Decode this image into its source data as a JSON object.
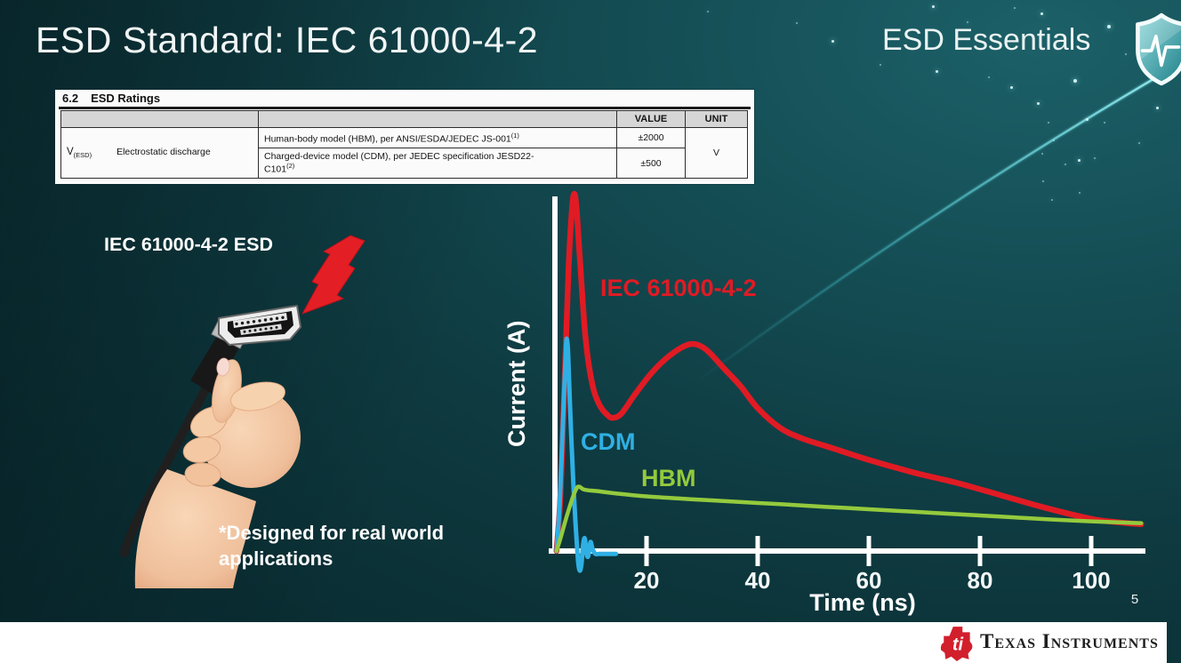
{
  "slide": {
    "title": "ESD Standard: IEC 61000-4-2",
    "program": "ESD Essentials",
    "page_number": "5",
    "brand": "Texas Instruments"
  },
  "ratings_table": {
    "section": "6.2",
    "section_title": "ESD Ratings",
    "value_header": "VALUE",
    "unit_header": "UNIT",
    "symbol": "V",
    "symbol_sub": "(ESD)",
    "row_label": "Electrostatic discharge",
    "rows": [
      {
        "desc": "Human-body model (HBM), per ANSI/ESDA/JEDEC JS-001",
        "sup": "(1)",
        "value": "±2000"
      },
      {
        "desc": "Charged-device model (CDM), per JEDEC specification JESD22-",
        "desc2": "C101",
        "sup": "(2)",
        "value": "±500"
      }
    ],
    "unit": "V"
  },
  "illustration": {
    "label": "IEC 61000-4-2 ESD",
    "note_line1": "*Designed for real world",
    "note_line2": "applications"
  },
  "chart_data": {
    "type": "line",
    "title": "",
    "xlabel": "Time (ns)",
    "ylabel": "Current (A)",
    "x_ticks": [
      20,
      40,
      60,
      80,
      100
    ],
    "xlim": [
      0,
      112
    ],
    "ylim": [
      -8,
      105
    ],
    "grid": false,
    "legend": "inline-labels",
    "y_unit": "relative amplitude (% of IEC 61000-4-2 peak)",
    "series": [
      {
        "name": "IEC 61000-4-2",
        "color": "#e01b24",
        "x": [
          3.8,
          4.5,
          5.2,
          6,
          6.6,
          7,
          7.4,
          8,
          9,
          10.2,
          11.5,
          13,
          14,
          15.5,
          18,
          21,
          24,
          27,
          29,
          31,
          34,
          37,
          40,
          44,
          48,
          53,
          60,
          68,
          76,
          84,
          92,
          100,
          105,
          109
        ],
        "y": [
          0,
          15,
          45,
          80,
          96,
          100,
          96,
          82,
          60,
          47,
          41,
          38,
          37.3,
          38.5,
          44,
          50,
          54.5,
          57.5,
          57.8,
          56,
          51,
          46,
          40,
          34.5,
          31.5,
          29,
          25.5,
          22,
          19,
          15.5,
          12,
          9,
          8,
          7.5
        ]
      },
      {
        "name": "CDM",
        "color": "#2fb0e4",
        "x": [
          3.8,
          4.4,
          5,
          5.5,
          5.7,
          5.9,
          6.3,
          6.8,
          7.3,
          7.7,
          8,
          8.3,
          8.6,
          8.9,
          9.2,
          9.5,
          9.9,
          10.3,
          10.8,
          11.5,
          13,
          14.5
        ],
        "y": [
          0,
          14,
          38,
          57,
          59,
          55,
          38,
          20,
          6,
          -3,
          -5.5,
          -3.5,
          2,
          3.5,
          -0.5,
          -1.5,
          2.5,
          0.5,
          -0.8,
          -0.8,
          -0.8,
          -0.8
        ]
      },
      {
        "name": "HBM",
        "color": "#94ca3d",
        "x": [
          3.8,
          4.6,
          5.6,
          6.6,
          7.4,
          7.9,
          8.6,
          9.5,
          11,
          14,
          20,
          28,
          36,
          44,
          52,
          60,
          68,
          76,
          84,
          92,
          100,
          105,
          109
        ],
        "y": [
          0,
          4,
          9.5,
          14.5,
          17.5,
          18,
          17.3,
          17,
          16.8,
          16.2,
          15.3,
          14.5,
          13.8,
          13.1,
          12.4,
          11.7,
          11,
          10.3,
          9.6,
          8.9,
          8.3,
          8,
          7.8
        ]
      }
    ]
  }
}
